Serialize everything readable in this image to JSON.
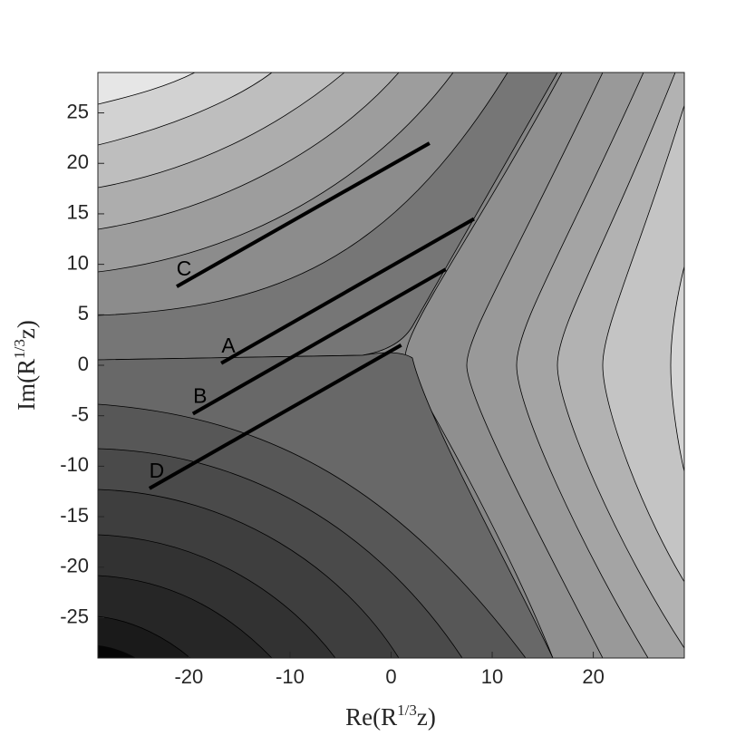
{
  "chart_data": {
    "type": "line",
    "x_label": {
      "base": "Re(R",
      "sup": "1/3",
      "tail": "z)"
    },
    "y_label": {
      "base": "Im(R",
      "sup": "1/3",
      "tail": "z)"
    },
    "xlim": [
      -29,
      29
    ],
    "ylim": [
      -29,
      29
    ],
    "xticks": [
      -20,
      -10,
      0,
      10,
      20
    ],
    "yticks": [
      -25,
      -20,
      -15,
      -10,
      -5,
      0,
      5,
      10,
      15,
      20,
      25
    ],
    "series": [
      {
        "name": "A",
        "color": "#000000",
        "x": [
          -16.8,
          8.2
        ],
        "values": [
          0.2,
          14.5
        ]
      },
      {
        "name": "B",
        "color": "#000000",
        "x": [
          -19.6,
          5.4
        ],
        "values": [
          -4.8,
          9.5
        ]
      },
      {
        "name": "C",
        "color": "#000000",
        "x": [
          -21.2,
          3.8
        ],
        "values": [
          7.8,
          22
        ]
      },
      {
        "name": "D",
        "color": "#000000",
        "x": [
          -23.9,
          1.0
        ],
        "values": [
          -12.2,
          2.0
        ]
      }
    ]
  }
}
